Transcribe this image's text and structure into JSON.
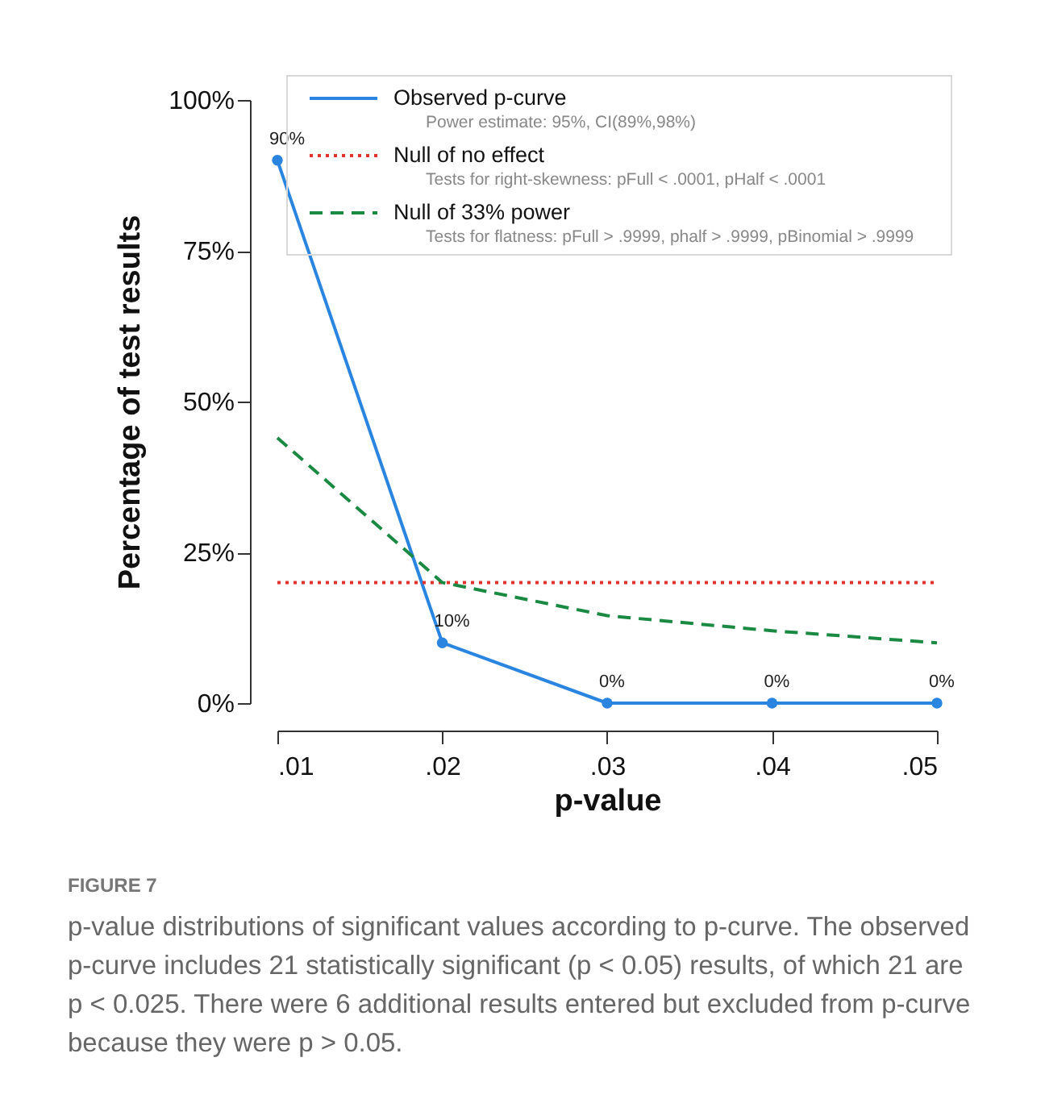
{
  "chart_data": {
    "type": "line",
    "xlabel": "p-value",
    "ylabel": "Percentage of test results",
    "x": [
      0.01,
      0.02,
      0.03,
      0.04,
      0.05
    ],
    "xlim": [
      0.01,
      0.05
    ],
    "xticks": [
      {
        "value": 0.01,
        "label": ".01"
      },
      {
        "value": 0.02,
        "label": ".02"
      },
      {
        "value": 0.03,
        "label": ".03"
      },
      {
        "value": 0.04,
        "label": ".04"
      },
      {
        "value": 0.05,
        "label": ".05"
      }
    ],
    "ylim": [
      0,
      100
    ],
    "yticks": [
      {
        "value": 0,
        "label": "0%"
      },
      {
        "value": 25,
        "label": "25%"
      },
      {
        "value": 50,
        "label": "50%"
      },
      {
        "value": 75,
        "label": "75%"
      },
      {
        "value": 100,
        "label": "100%"
      }
    ],
    "series": [
      {
        "name": "Observed p-curve",
        "color": "#2a85e0",
        "values": [
          90,
          10,
          0,
          0,
          0
        ],
        "line_style": "solid",
        "marker": "circle",
        "value_labels": [
          "90%",
          "10%",
          "0%",
          "0%",
          "0%"
        ]
      },
      {
        "name": "Null of no effect",
        "color": "#e0352f",
        "values": [
          20,
          20,
          20,
          20,
          20
        ],
        "line_style": "dotted",
        "marker": "none"
      },
      {
        "name": "Null of 33% power",
        "color": "#1a8a43",
        "values": [
          44,
          20,
          14.5,
          12,
          10
        ],
        "line_style": "dashed",
        "marker": "none"
      }
    ],
    "legend": "top",
    "grid": false,
    "annotations": [
      "Power estimate: 95%, CI(89%,98%)",
      "Tests for right-skewness: pFull < .0001, pHalf < .0001",
      "Tests for flatness: pFull > .9999, phalf > .9999, pBinomial > .9999",
      "FIGURE 7",
      "p-value distributions of significant values according to p-curve. The observed p-curve includes 21 statistically significant (p < 0.05) results, of which 21 are p < 0.025. There were 6 additional results entered but excluded from p-curve because they were p > 0.05."
    ]
  }
}
